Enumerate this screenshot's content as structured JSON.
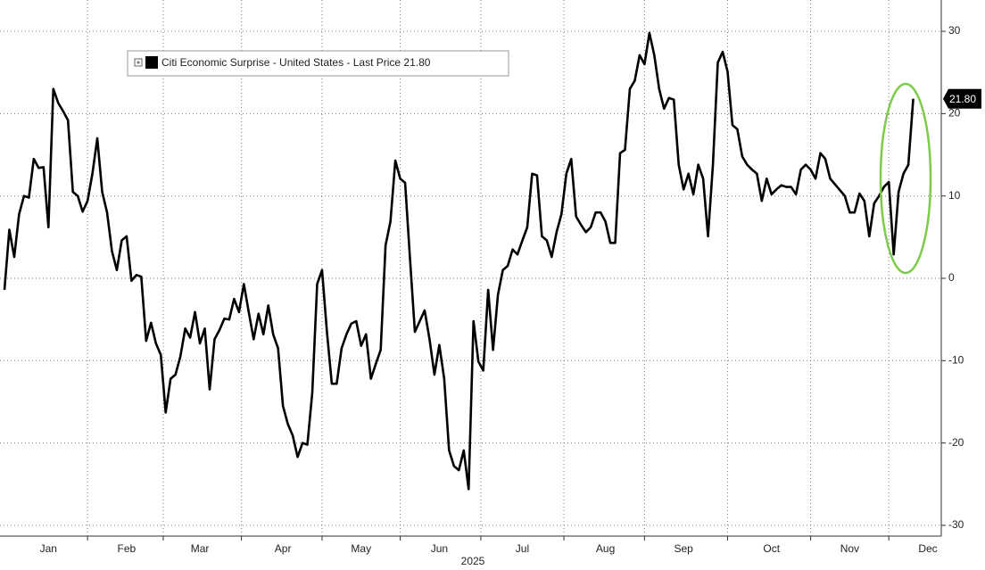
{
  "chart_data": {
    "type": "line",
    "xlabel": "2025",
    "ylim": [
      -31.2,
      33.8
    ],
    "yticks": [
      30,
      20,
      10,
      0,
      -10,
      -20,
      -30
    ],
    "grid": true,
    "categories": [
      null,
      null,
      null,
      null,
      null,
      null,
      null,
      null,
      null,
      "Jan",
      null,
      null,
      null,
      null,
      null,
      null,
      null,
      null,
      null,
      null,
      null,
      null,
      null,
      null,
      null,
      "Feb",
      null,
      null,
      null,
      null,
      null,
      null,
      null,
      null,
      null,
      null,
      null,
      null,
      null,
      null,
      "Mar",
      null,
      null,
      null,
      null,
      null,
      null,
      null,
      null,
      null,
      null,
      null,
      null,
      null,
      null,
      null,
      null,
      "Apr",
      null,
      null,
      null,
      null,
      null,
      null,
      null,
      null,
      null,
      null,
      null,
      null,
      null,
      null,
      null,
      "May",
      null,
      null,
      null,
      null,
      null,
      null,
      null,
      null,
      null,
      null,
      null,
      null,
      null,
      null,
      null,
      "Jun",
      null,
      null,
      null,
      null,
      null,
      null,
      null,
      null,
      null,
      null,
      null,
      null,
      null,
      null,
      null,
      null,
      "Jul",
      null,
      null,
      null,
      null,
      null,
      null,
      null,
      null,
      null,
      null,
      null,
      null,
      null,
      null,
      null,
      null,
      "Aug",
      null,
      null,
      null,
      null,
      null,
      null,
      null,
      null,
      null,
      null,
      null,
      null,
      null,
      null,
      null,
      "Sep",
      null,
      null,
      null,
      null,
      null,
      null,
      null,
      null,
      null,
      null,
      null,
      null,
      null,
      null,
      null,
      null,
      null,
      "Oct",
      null,
      null,
      null,
      null,
      null,
      null,
      null,
      null,
      null,
      null,
      null,
      null,
      null,
      null,
      null,
      "Nov",
      null,
      null,
      null,
      null,
      null,
      null,
      null,
      null,
      null,
      null,
      null,
      null,
      null,
      null,
      null,
      "Dec"
    ],
    "series": [
      {
        "name": "Citi Economic Surprise - United States - Last Price 21.80",
        "color": "#000000",
        "last_label": "21.80",
        "values": [
          -1.4,
          5.9,
          2.6,
          7.8,
          10,
          9.8,
          14.5,
          13.4,
          13.5,
          6.2,
          23,
          21.3,
          20.3,
          19.2,
          10.5,
          10,
          8.1,
          9.4,
          12.7,
          17,
          10.5,
          8,
          3.3,
          1,
          4.6,
          5.1,
          -0.3,
          0.4,
          0.2,
          -7.6,
          -5.4,
          -7.9,
          -9.3,
          -16.3,
          -12.2,
          -11.7,
          -9.5,
          -6.1,
          -7.2,
          -4.1,
          -7.9,
          -6.1,
          -13.5,
          -7.4,
          -6.3,
          -4.9,
          -5,
          -2.5,
          -4.1,
          -0.7,
          -4.1,
          -7.4,
          -4.3,
          -6.8,
          -3.3,
          -6.8,
          -8.5,
          -15.5,
          -17.7,
          -19.1,
          -21.7,
          -20,
          -20.2,
          -13.9,
          -0.7,
          1,
          -6.5,
          -12.8,
          -12.8,
          -8.5,
          -6.8,
          -5.5,
          -5.2,
          -8.2,
          -6.8,
          -12.2,
          -10.4,
          -8.7,
          4,
          6.9,
          14.3,
          12.1,
          11.6,
          2.4,
          -6.5,
          -5.2,
          -3.9,
          -7.4,
          -11.7,
          -8.1,
          -12.2,
          -20.9,
          -22.8,
          -23.3,
          -20.9,
          -25.6,
          -5.2,
          -10.1,
          -11.2,
          -1.4,
          -8.7,
          -2,
          1,
          1.5,
          3.5,
          2.9,
          4.6,
          6.2,
          12.7,
          12.5,
          5.1,
          4.6,
          2.6,
          5.6,
          7.8,
          12.7,
          14.5,
          7.5,
          6.5,
          5.6,
          6.2,
          8,
          8,
          6.9,
          4.3,
          4.3,
          15.2,
          15.6,
          23,
          24,
          27.1,
          26,
          29.8,
          27.1,
          23,
          20.6,
          21.9,
          21.7,
          13.8,
          10.8,
          12.7,
          10.2,
          13.8,
          12.1,
          5.1,
          13.8,
          26.2,
          27.5,
          25.1,
          18.6,
          18.1,
          14.8,
          13.8,
          13.2,
          12.7,
          9.4,
          12.1,
          10.2,
          10.8,
          11.3,
          11.1,
          11.1,
          10.2,
          13.2,
          13.8,
          13.2,
          12.1,
          15.2,
          14.5,
          12.1,
          11.4,
          10.7,
          10,
          8,
          8,
          10.3,
          9.4,
          5.1,
          9.1,
          10,
          11.1,
          11.7,
          2.9,
          10.5,
          12.7,
          13.8,
          21.8,
          null,
          null,
          null
        ]
      }
    ]
  }
}
